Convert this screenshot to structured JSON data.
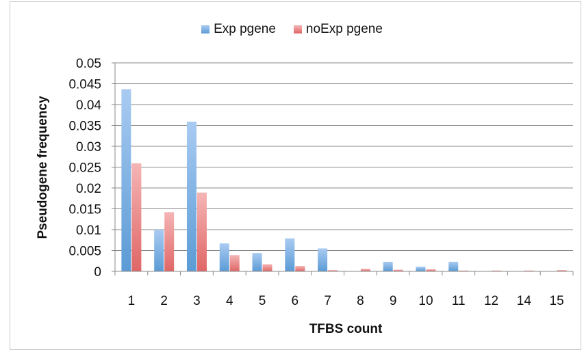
{
  "chart_data": {
    "type": "bar",
    "title": "",
    "xlabel": "TFBS count",
    "ylabel": "Pseudogene frequency",
    "categories": [
      "1",
      "2",
      "3",
      "4",
      "5",
      "6",
      "7",
      "8",
      "9",
      "10",
      "11",
      "12",
      "14",
      "15"
    ],
    "series": [
      {
        "name": "Exp pgene",
        "values": [
          0.0437,
          0.01,
          0.0359,
          0.0067,
          0.0044,
          0.0079,
          0.0055,
          0.0,
          0.0023,
          0.0011,
          0.0023,
          0.0,
          0.0,
          0.0
        ]
      },
      {
        "name": "noExp pgene",
        "values": [
          0.0259,
          0.0142,
          0.0189,
          0.0039,
          0.0017,
          0.0013,
          0.0003,
          0.0006,
          0.0004,
          0.0005,
          0.0002,
          0.0002,
          0.0002,
          0.0003
        ]
      }
    ],
    "ylim": [
      0,
      0.05
    ],
    "yticks": [
      "0",
      "0.005",
      "0.01",
      "0.015",
      "0.02",
      "0.025",
      "0.03",
      "0.035",
      "0.04",
      "0.045",
      "0.05"
    ],
    "grid": true,
    "legend_position": "top"
  },
  "colors": {
    "exp": "#5b9bd5",
    "exp_light": "#a9cbf2",
    "noexp": "#e06666",
    "noexp_light": "#f5b5b5",
    "grid": "#888888"
  }
}
